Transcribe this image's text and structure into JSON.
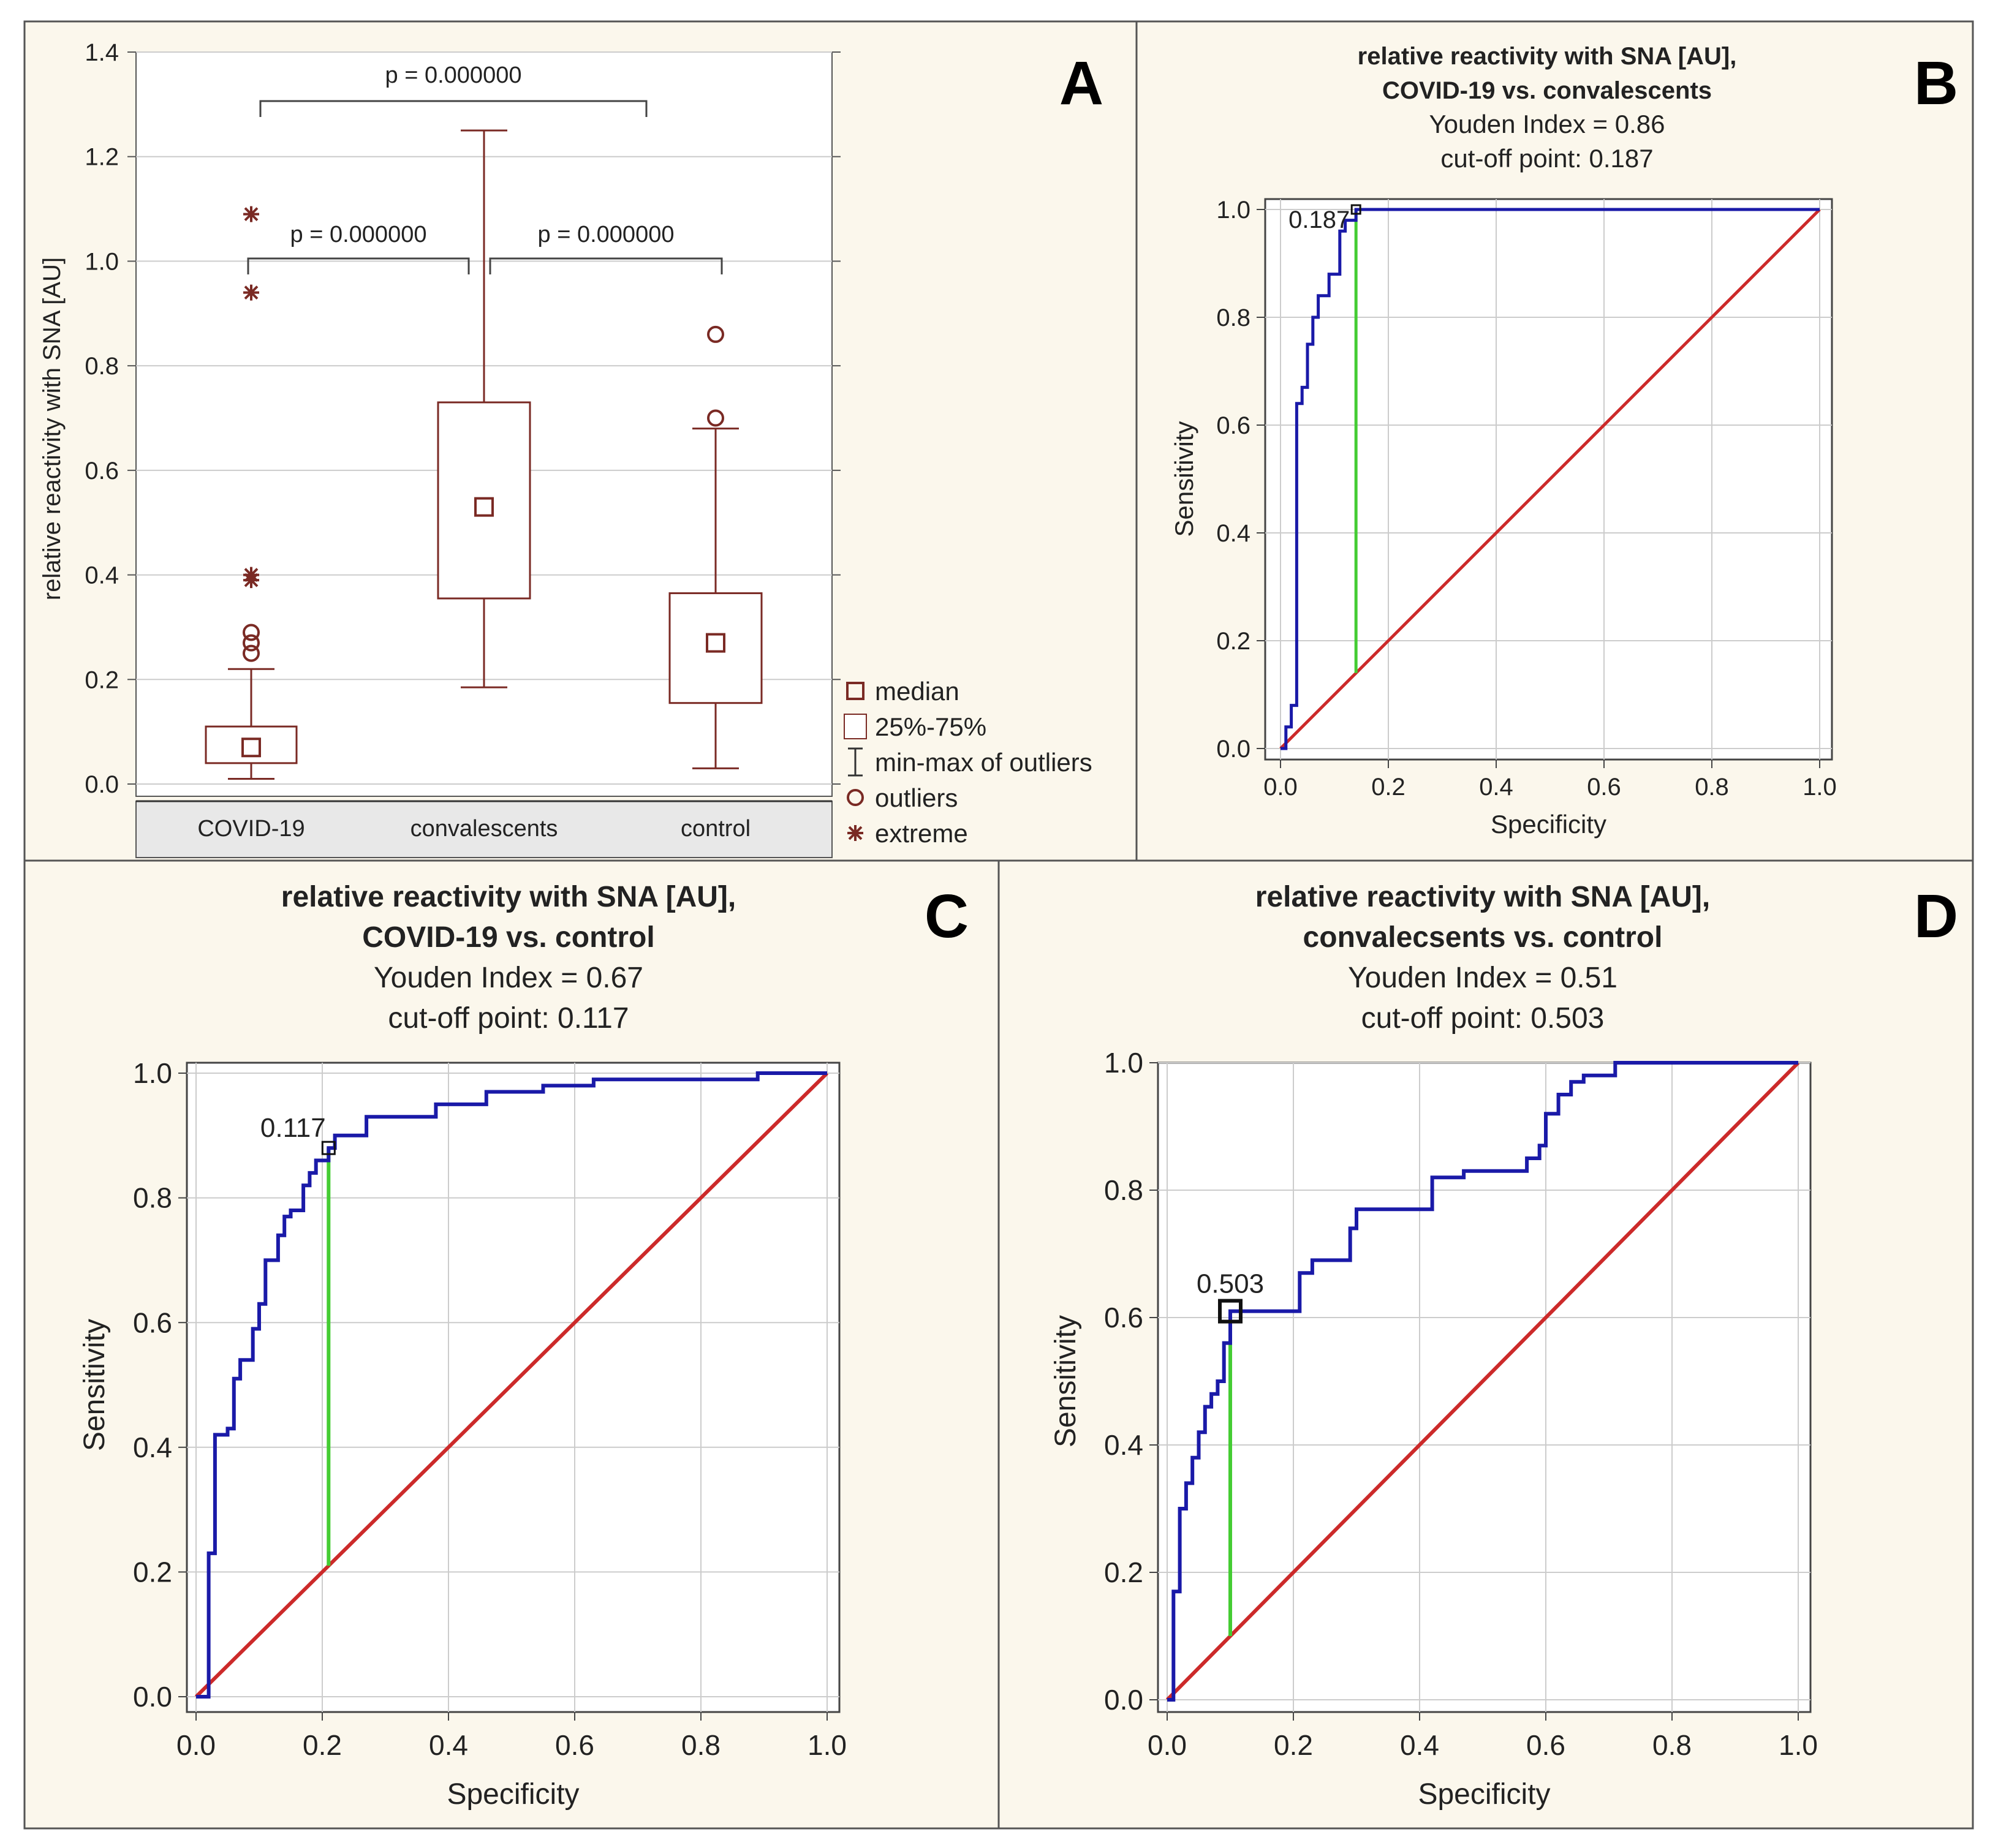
{
  "colors": {
    "background": "#fbf7ec",
    "frame": "#555555",
    "box": "#7a2a24",
    "roc": "#1a1aa8",
    "diagonal": "#cc2a2a",
    "youden": "#44cc33",
    "grid": "#cccccc",
    "text": "#222222",
    "axisband": "#e8e8e8"
  },
  "chart_data": [
    {
      "panel": "A",
      "type": "box",
      "title": "",
      "ylabel": "relative reactivity with SNA [AU]",
      "ylim": [
        -0.03,
        1.4
      ],
      "yticks": [
        0.0,
        0.2,
        0.4,
        0.6,
        0.8,
        1.0,
        1.2,
        1.4
      ],
      "ytick_labels": [
        "0.0",
        "0.2",
        "0.4",
        "0.6",
        "0.8",
        "1.0",
        "1.2",
        "1.4"
      ],
      "categories": [
        "COVID-19",
        "convalescents",
        "control"
      ],
      "groups": [
        {
          "name": "COVID-19",
          "median": 0.07,
          "q1": 0.04,
          "q3": 0.11,
          "min": 0.01,
          "max": 0.22,
          "outliers": [
            0.25,
            0.27,
            0.29
          ],
          "extremes": [
            0.39,
            0.4,
            0.94,
            1.09
          ]
        },
        {
          "name": "convalescents",
          "median": 0.53,
          "q1": 0.355,
          "q3": 0.73,
          "min": 0.185,
          "max": 1.25,
          "outliers": [],
          "extremes": []
        },
        {
          "name": "control",
          "median": 0.27,
          "q1": 0.155,
          "q3": 0.365,
          "min": 0.03,
          "max": 0.68,
          "outliers": [
            0.7,
            0.86
          ],
          "extremes": []
        }
      ],
      "comparisons": [
        {
          "from": 0,
          "to": 1,
          "label": "p = 0.000000",
          "y": 1.0
        },
        {
          "from": 1,
          "to": 2,
          "label": "p = 0.000000",
          "y": 1.0
        },
        {
          "from": 0,
          "to": 2,
          "label": "p = 0.000000",
          "y": 1.3
        }
      ],
      "legend": [
        "median",
        "25%-75%",
        "min-max of outliers",
        "outliers",
        "extreme"
      ]
    },
    {
      "panel": "B",
      "type": "line",
      "title": "relative reactivity with SNA [AU],",
      "subtitle": "COVID-19 vs. convalescents",
      "youden_label": "Youden Index  = 0.86",
      "cutoff_label": "cut-off point: 0.187",
      "point_label": "0.187",
      "xlabel": "Specificity",
      "ylabel": "Sensitivity",
      "xlim": [
        0,
        1
      ],
      "ylim": [
        0,
        1
      ],
      "ticks": [
        "0.0",
        "0.2",
        "0.4",
        "0.6",
        "0.8",
        "1.0"
      ],
      "cutoff_point": [
        0.14,
        1.0
      ],
      "roc_x": [
        0.0,
        0.01,
        0.01,
        0.02,
        0.02,
        0.03,
        0.03,
        0.04,
        0.04,
        0.05,
        0.05,
        0.06,
        0.06,
        0.07,
        0.07,
        0.09,
        0.09,
        0.11,
        0.11,
        0.12,
        0.12,
        0.14,
        0.14,
        1.0
      ],
      "roc_y": [
        0.0,
        0.0,
        0.04,
        0.04,
        0.08,
        0.08,
        0.64,
        0.64,
        0.67,
        0.67,
        0.75,
        0.75,
        0.8,
        0.8,
        0.84,
        0.84,
        0.88,
        0.88,
        0.96,
        0.96,
        0.98,
        0.98,
        1.0,
        1.0
      ]
    },
    {
      "panel": "C",
      "type": "line",
      "title": "relative reactivity with SNA [AU],",
      "subtitle": "COVID-19 vs. control",
      "youden_label": "Youden Index  = 0.67",
      "cutoff_label": "cut-off point: 0.117",
      "point_label": "0.117",
      "xlabel": "Specificity",
      "ylabel": "Sensitivity",
      "xlim": [
        0,
        1
      ],
      "ylim": [
        0,
        1
      ],
      "ticks": [
        "0.0",
        "0.2",
        "0.4",
        "0.6",
        "0.8",
        "1.0"
      ],
      "cutoff_point": [
        0.21,
        0.88
      ],
      "roc_x": [
        0.0,
        0.02,
        0.02,
        0.03,
        0.03,
        0.05,
        0.05,
        0.06,
        0.06,
        0.07,
        0.07,
        0.09,
        0.09,
        0.1,
        0.1,
        0.11,
        0.11,
        0.13,
        0.13,
        0.14,
        0.14,
        0.15,
        0.15,
        0.17,
        0.17,
        0.18,
        0.18,
        0.19,
        0.19,
        0.21,
        0.21,
        0.22,
        0.22,
        0.27,
        0.27,
        0.38,
        0.38,
        0.46,
        0.46,
        0.55,
        0.55,
        0.63,
        0.63,
        0.89,
        0.89,
        1.0
      ],
      "roc_y": [
        0.0,
        0.0,
        0.23,
        0.23,
        0.42,
        0.42,
        0.43,
        0.43,
        0.51,
        0.51,
        0.54,
        0.54,
        0.59,
        0.59,
        0.63,
        0.63,
        0.7,
        0.7,
        0.74,
        0.74,
        0.77,
        0.77,
        0.78,
        0.78,
        0.82,
        0.82,
        0.84,
        0.84,
        0.86,
        0.86,
        0.88,
        0.88,
        0.9,
        0.9,
        0.93,
        0.93,
        0.95,
        0.95,
        0.97,
        0.97,
        0.98,
        0.98,
        0.99,
        0.99,
        1.0,
        1.0
      ]
    },
    {
      "panel": "D",
      "type": "line",
      "title": "relative reactivity with SNA [AU],",
      "subtitle": "convalecsents vs. control",
      "youden_label": "Youden Index  = 0.51",
      "cutoff_label": "cut-off point: 0.503",
      "point_label": "0.503",
      "xlabel": "Specificity",
      "ylabel": "Sensitivity",
      "xlim": [
        0,
        1
      ],
      "ylim": [
        0,
        1
      ],
      "ticks": [
        "0.0",
        "0.2",
        "0.4",
        "0.6",
        "0.8",
        "1.0"
      ],
      "cutoff_point": [
        0.1,
        0.61
      ],
      "roc_x": [
        0.0,
        0.01,
        0.01,
        0.02,
        0.02,
        0.03,
        0.03,
        0.04,
        0.04,
        0.05,
        0.05,
        0.06,
        0.06,
        0.07,
        0.07,
        0.08,
        0.08,
        0.09,
        0.09,
        0.1,
        0.1,
        0.21,
        0.21,
        0.23,
        0.23,
        0.25,
        0.25,
        0.29,
        0.29,
        0.3,
        0.3,
        0.34,
        0.34,
        0.42,
        0.42,
        0.47,
        0.47,
        0.55,
        0.55,
        0.57,
        0.57,
        0.59,
        0.59,
        0.6,
        0.6,
        0.62,
        0.62,
        0.64,
        0.64,
        0.66,
        0.66,
        0.71,
        0.71,
        1.0
      ],
      "roc_y": [
        0.0,
        0.0,
        0.17,
        0.17,
        0.3,
        0.3,
        0.34,
        0.34,
        0.38,
        0.38,
        0.42,
        0.42,
        0.46,
        0.46,
        0.48,
        0.48,
        0.5,
        0.5,
        0.56,
        0.56,
        0.61,
        0.61,
        0.67,
        0.67,
        0.69,
        0.69,
        0.69,
        0.69,
        0.74,
        0.74,
        0.77,
        0.77,
        0.77,
        0.77,
        0.82,
        0.82,
        0.83,
        0.83,
        0.83,
        0.83,
        0.85,
        0.85,
        0.87,
        0.87,
        0.92,
        0.92,
        0.95,
        0.95,
        0.97,
        0.97,
        0.98,
        0.98,
        1.0,
        1.0
      ]
    }
  ],
  "panel_labels": [
    "A",
    "B",
    "C",
    "D"
  ]
}
